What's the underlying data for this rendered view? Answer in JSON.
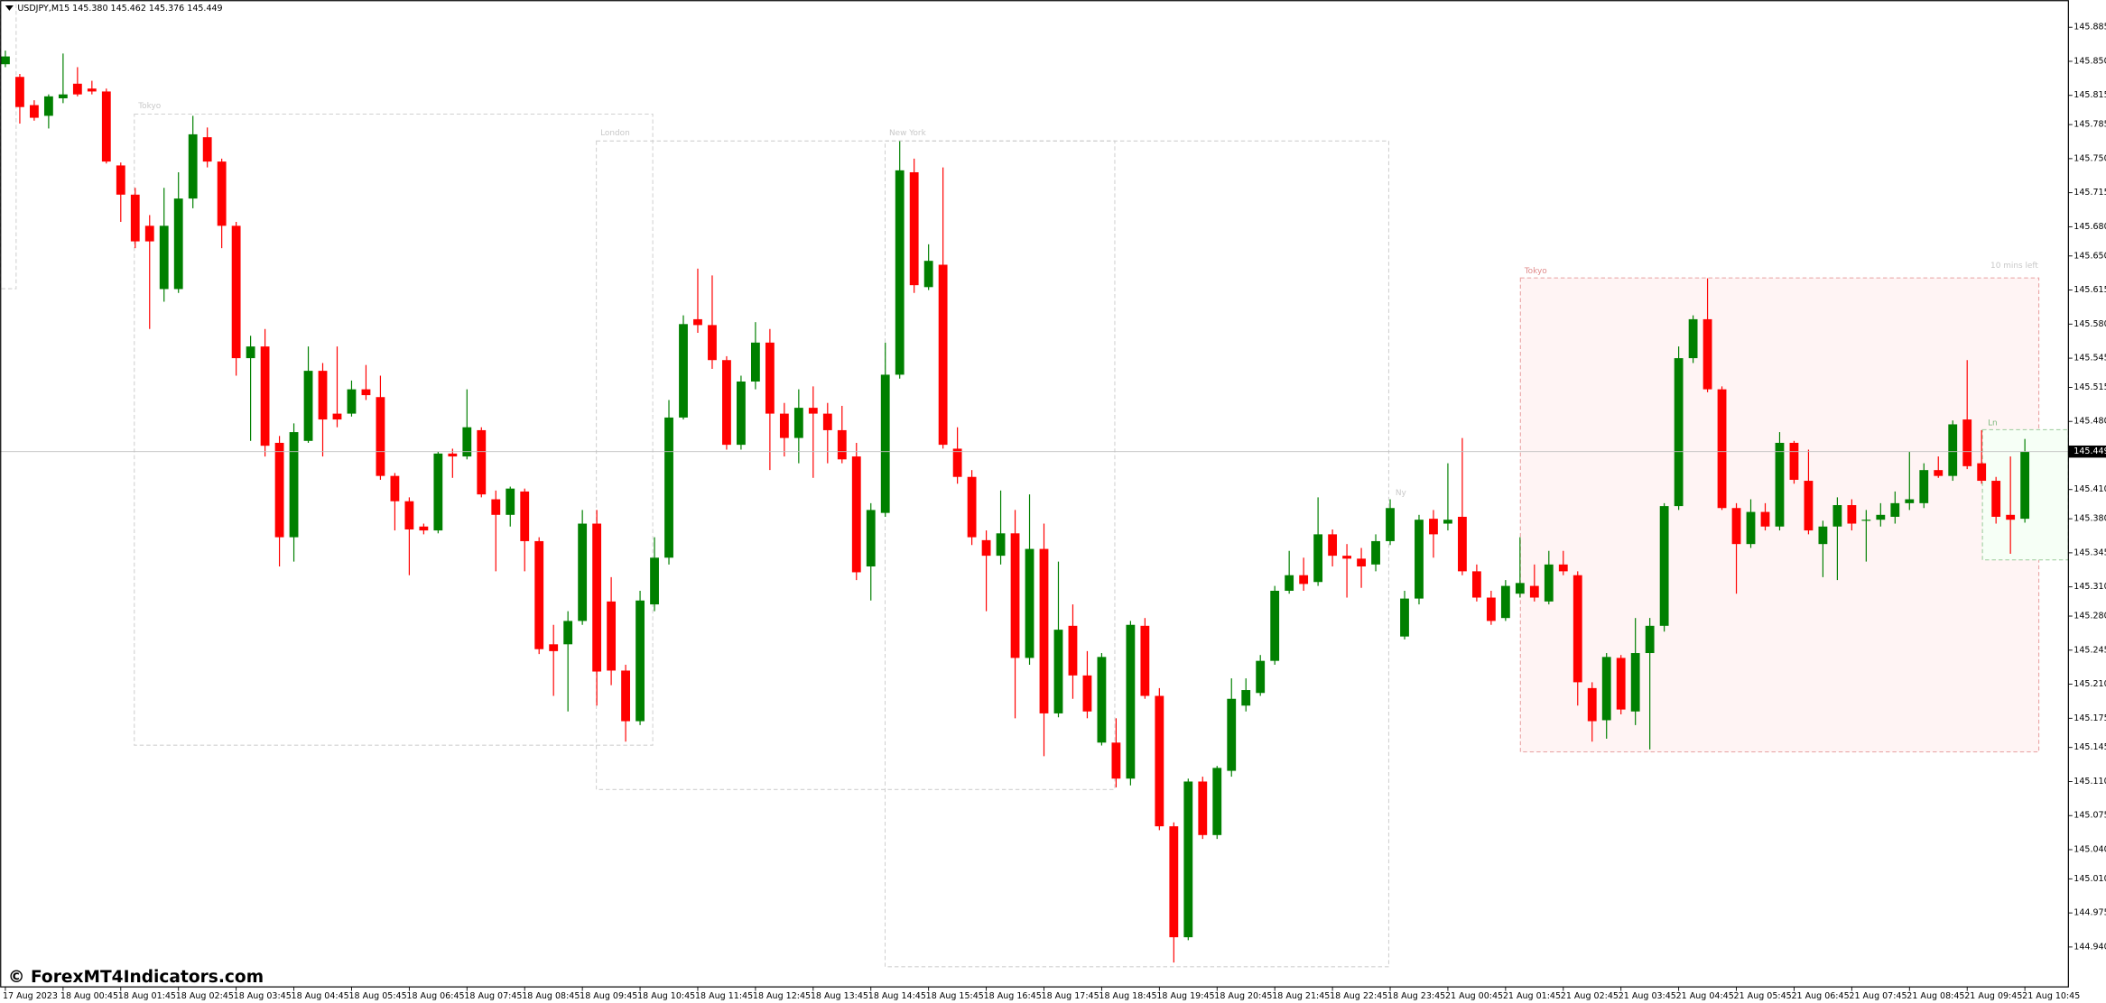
{
  "chart_data": {
    "type": "candlestick",
    "title": "USDJPY,M15  145.380 145.462 145.376 145.449",
    "watermark": "© ForexMT4Indicators.com",
    "sessions": [
      {
        "label": "Tokyo"
      },
      {
        "label": "London"
      },
      {
        "label": "New York"
      },
      {
        "label": "Ny"
      },
      {
        "label": "Tokyo"
      },
      {
        "label": "Ln"
      }
    ],
    "timer": "10 mins left",
    "up_color": "#008000",
    "down_color": "#ff0000",
    "grid": false,
    "ylim": [
      144.899,
      145.913
    ],
    "yticks": [
      {
        "value": 145.885,
        "label": "145.885"
      },
      {
        "value": 145.85,
        "label": "145.850"
      },
      {
        "value": 145.815,
        "label": "145.815"
      },
      {
        "value": 145.785,
        "label": "145.785"
      },
      {
        "value": 145.75,
        "label": "145.750"
      },
      {
        "value": 145.715,
        "label": "145.715"
      },
      {
        "value": 145.68,
        "label": "145.680"
      },
      {
        "value": 145.65,
        "label": "145.650"
      },
      {
        "value": 145.615,
        "label": "145.615"
      },
      {
        "value": 145.58,
        "label": "145.580"
      },
      {
        "value": 145.545,
        "label": "145.545"
      },
      {
        "value": 145.515,
        "label": "145.515"
      },
      {
        "value": 145.48,
        "label": "145.480"
      },
      {
        "value": 145.41,
        "label": "145.410"
      },
      {
        "value": 145.38,
        "label": "145.380"
      },
      {
        "value": 145.345,
        "label": "145.345"
      },
      {
        "value": 145.31,
        "label": "145.310"
      },
      {
        "value": 145.28,
        "label": "145.280"
      },
      {
        "value": 145.245,
        "label": "145.245"
      },
      {
        "value": 145.21,
        "label": "145.210"
      },
      {
        "value": 145.175,
        "label": "145.175"
      },
      {
        "value": 145.145,
        "label": "145.145"
      },
      {
        "value": 145.11,
        "label": "145.110"
      },
      {
        "value": 145.075,
        "label": "145.075"
      },
      {
        "value": 145.04,
        "label": "145.040"
      },
      {
        "value": 145.01,
        "label": "145.010"
      },
      {
        "value": 144.975,
        "label": "144.975"
      },
      {
        "value": 144.94,
        "label": "144.940"
      }
    ],
    "categories": [
      "17 Aug 2023",
      null,
      null,
      null,
      "18 Aug 00:45",
      null,
      null,
      null,
      "18 Aug 01:45",
      null,
      null,
      null,
      "18 Aug 02:45",
      null,
      null,
      null,
      "18 Aug 03:45",
      null,
      null,
      null,
      "18 Aug 04:45",
      null,
      null,
      null,
      "18 Aug 05:45",
      null,
      null,
      null,
      "18 Aug 06:45",
      null,
      null,
      null,
      "18 Aug 07:45",
      null,
      null,
      null,
      "18 Aug 08:45",
      null,
      null,
      null,
      "18 Aug 09:45",
      null,
      null,
      null,
      "18 Aug 10:45",
      null,
      null,
      null,
      "18 Aug 11:45",
      null,
      null,
      null,
      "18 Aug 12:45",
      null,
      null,
      null,
      "18 Aug 13:45",
      null,
      null,
      null,
      "18 Aug 14:45",
      null,
      null,
      null,
      "18 Aug 15:45",
      null,
      null,
      null,
      "18 Aug 16:45",
      null,
      null,
      null,
      "18 Aug 17:45",
      null,
      null,
      null,
      "18 Aug 18:45",
      null,
      null,
      null,
      "18 Aug 19:45",
      null,
      null,
      null,
      "18 Aug 20:45",
      null,
      null,
      null,
      "18 Aug 21:45",
      null,
      null,
      null,
      "18 Aug 22:45",
      null,
      null,
      null,
      "18 Aug 23:45",
      null,
      null,
      null,
      "21 Aug 00:45",
      null,
      null,
      null,
      "21 Aug 01:45",
      null,
      null,
      null,
      "21 Aug 02:45",
      null,
      null,
      null,
      "21 Aug 03:45",
      null,
      null,
      null,
      "21 Aug 04:45",
      null,
      null,
      null,
      "21 Aug 05:45",
      null,
      null,
      null,
      "21 Aug 06:45",
      null,
      null,
      null,
      "21 Aug 07:45",
      null,
      null,
      null,
      "21 Aug 08:45",
      null,
      null,
      null,
      "21 Aug 09:45",
      null,
      null,
      null,
      "21 Aug 10:45"
    ],
    "open": [
      145.847,
      145.834,
      145.805,
      145.794,
      145.812,
      145.827,
      145.822,
      145.819,
      145.743,
      145.713,
      145.681,
      145.616,
      145.616,
      145.709,
      145.772,
      145.747,
      145.681,
      145.545,
      145.557,
      145.458,
      145.361,
      145.46,
      145.532,
      145.488,
      145.488,
      145.513,
      145.505,
      145.424,
      145.398,
      145.372,
      145.368,
      145.447,
      145.444,
      145.471,
      145.4,
      145.384,
      145.408,
      145.357,
      145.251,
      145.251,
      145.275,
      145.375,
      145.295,
      145.224,
      145.172,
      145.292,
      145.34,
      145.484,
      145.585,
      145.579,
      145.543,
      145.456,
      145.521,
      145.561,
      145.488,
      145.463,
      145.494,
      145.488,
      145.471,
      145.444,
      145.331,
      145.386,
      145.528,
      145.736,
      145.618,
      145.641,
      145.452,
      145.423,
      145.358,
      145.342,
      145.365,
      145.237,
      145.349,
      145.18,
      145.27,
      145.219,
      145.15,
      145.15,
      145.113,
      145.27,
      145.198,
      145.064,
      144.95,
      145.11,
      145.055,
      145.121,
      145.188,
      145.201,
      145.234,
      145.306,
      145.322,
      145.315,
      145.364,
      145.342,
      145.339,
      145.333,
      145.357,
      145.259,
      145.298,
      145.38,
      145.375,
      145.382,
      145.326,
      145.299,
      145.278,
      145.303,
      145.311,
      145.295,
      145.333,
      145.322,
      145.206,
      145.173,
      145.237,
      145.182,
      145.242,
      145.27,
      145.393,
      145.545,
      145.585,
      145.513,
      145.391,
      145.354,
      145.387,
      145.372,
      145.458,
      145.419,
      145.354,
      145.372,
      145.394,
      145.378,
      145.379,
      145.382,
      145.396,
      145.396,
      145.43,
      145.424,
      145.482,
      145.437,
      145.419,
      145.384,
      145.38
    ],
    "high": [
      145.861,
      145.837,
      145.81,
      145.816,
      145.858,
      145.844,
      145.83,
      145.822,
      145.746,
      145.72,
      145.692,
      145.72,
      145.736,
      145.794,
      145.782,
      145.75,
      145.685,
      145.568,
      145.575,
      145.465,
      145.478,
      145.557,
      145.54,
      145.557,
      145.522,
      145.538,
      145.527,
      145.427,
      145.402,
      145.375,
      145.449,
      145.452,
      145.513,
      145.474,
      145.409,
      145.413,
      145.411,
      145.361,
      145.271,
      145.285,
      145.389,
      145.389,
      145.32,
      145.23,
      145.306,
      145.361,
      145.502,
      145.589,
      145.637,
      145.63,
      145.547,
      145.527,
      145.582,
      145.575,
      145.499,
      145.513,
      145.516,
      145.499,
      145.496,
      145.458,
      145.396,
      145.561,
      145.768,
      145.75,
      145.662,
      145.741,
      145.474,
      145.43,
      145.368,
      145.409,
      145.389,
      145.405,
      145.375,
      145.336,
      145.292,
      145.244,
      145.242,
      145.175,
      145.275,
      145.278,
      145.206,
      145.068,
      145.113,
      145.115,
      145.126,
      145.216,
      145.216,
      145.24,
      145.311,
      145.347,
      145.34,
      145.402,
      145.369,
      145.354,
      145.35,
      145.364,
      145.4,
      145.306,
      145.384,
      145.389,
      145.437,
      145.463,
      145.333,
      145.306,
      145.317,
      145.361,
      145.333,
      145.347,
      145.347,
      145.326,
      145.212,
      145.242,
      145.24,
      145.278,
      145.278,
      145.396,
      145.557,
      145.589,
      145.627,
      145.516,
      145.396,
      145.4,
      145.396,
      145.469,
      145.46,
      145.451,
      145.378,
      145.402,
      145.4,
      145.389,
      145.396,
      145.408,
      145.449,
      145.437,
      145.444,
      145.481,
      145.543,
      145.471,
      145.423,
      145.444,
      145.462
    ],
    "low": [
      145.844,
      145.786,
      145.789,
      145.781,
      145.807,
      145.814,
      145.816,
      145.745,
      145.685,
      145.658,
      145.575,
      145.603,
      145.612,
      145.699,
      145.741,
      145.658,
      145.527,
      145.46,
      145.444,
      145.331,
      145.336,
      145.458,
      145.444,
      145.474,
      145.485,
      145.502,
      145.42,
      145.368,
      145.322,
      145.364,
      145.365,
      145.422,
      145.441,
      145.402,
      145.326,
      145.372,
      145.326,
      145.241,
      145.198,
      145.182,
      145.271,
      145.188,
      145.209,
      145.151,
      145.168,
      145.285,
      145.333,
      145.482,
      145.571,
      145.534,
      145.451,
      145.451,
      145.513,
      145.43,
      145.444,
      145.437,
      145.422,
      145.437,
      145.437,
      145.317,
      145.296,
      145.382,
      145.524,
      145.612,
      145.615,
      145.452,
      145.416,
      145.353,
      145.285,
      145.333,
      145.175,
      145.23,
      145.136,
      145.176,
      145.195,
      145.175,
      145.147,
      145.104,
      145.106,
      145.195,
      145.06,
      144.924,
      144.947,
      145.051,
      145.051,
      145.115,
      145.182,
      145.198,
      145.23,
      145.303,
      145.306,
      145.311,
      145.331,
      145.299,
      145.309,
      145.326,
      145.353,
      145.256,
      145.292,
      145.34,
      145.368,
      145.322,
      145.295,
      145.271,
      145.275,
      145.299,
      145.295,
      145.292,
      145.322,
      145.188,
      145.151,
      145.154,
      145.179,
      145.168,
      145.143,
      145.264,
      145.389,
      145.54,
      145.51,
      145.389,
      145.303,
      145.35,
      145.368,
      145.368,
      145.416,
      145.364,
      145.32,
      145.317,
      145.368,
      145.336,
      145.372,
      145.375,
      145.389,
      145.391,
      145.422,
      145.419,
      145.431,
      145.416,
      145.375,
      145.344,
      145.376
    ],
    "close": [
      145.855,
      145.803,
      145.792,
      145.814,
      145.816,
      145.816,
      145.819,
      145.747,
      145.713,
      145.665,
      145.665,
      145.681,
      145.709,
      145.775,
      145.747,
      145.681,
      145.545,
      145.557,
      145.455,
      145.361,
      145.469,
      145.532,
      145.482,
      145.482,
      145.513,
      145.507,
      145.424,
      145.398,
      145.369,
      145.368,
      145.447,
      145.444,
      145.474,
      145.405,
      145.384,
      145.411,
      145.357,
      145.246,
      145.244,
      145.275,
      145.375,
      145.223,
      145.224,
      145.172,
      145.296,
      145.34,
      145.484,
      145.58,
      145.579,
      145.543,
      145.456,
      145.521,
      145.561,
      145.488,
      145.463,
      145.494,
      145.488,
      145.471,
      145.441,
      145.325,
      145.389,
      145.528,
      145.738,
      145.62,
      145.645,
      145.456,
      145.423,
      145.361,
      145.342,
      145.365,
      145.237,
      145.349,
      145.18,
      145.266,
      145.219,
      145.182,
      145.238,
      145.113,
      145.271,
      145.198,
      145.064,
      144.95,
      145.11,
      145.055,
      145.124,
      145.195,
      145.204,
      145.234,
      145.306,
      145.322,
      145.313,
      145.364,
      145.342,
      145.339,
      145.331,
      145.357,
      145.391,
      145.298,
      145.379,
      145.364,
      145.379,
      145.326,
      145.299,
      145.275,
      145.311,
      145.314,
      145.299,
      145.333,
      145.326,
      145.212,
      145.172,
      145.238,
      145.184,
      145.242,
      145.27,
      145.393,
      145.545,
      145.585,
      145.513,
      145.391,
      145.354,
      145.387,
      145.372,
      145.458,
      145.42,
      145.368,
      145.372,
      145.394,
      145.375,
      145.379,
      145.384,
      145.396,
      145.4,
      145.43,
      145.424,
      145.477,
      145.434,
      145.419,
      145.382,
      145.379,
      145.449
    ]
  }
}
